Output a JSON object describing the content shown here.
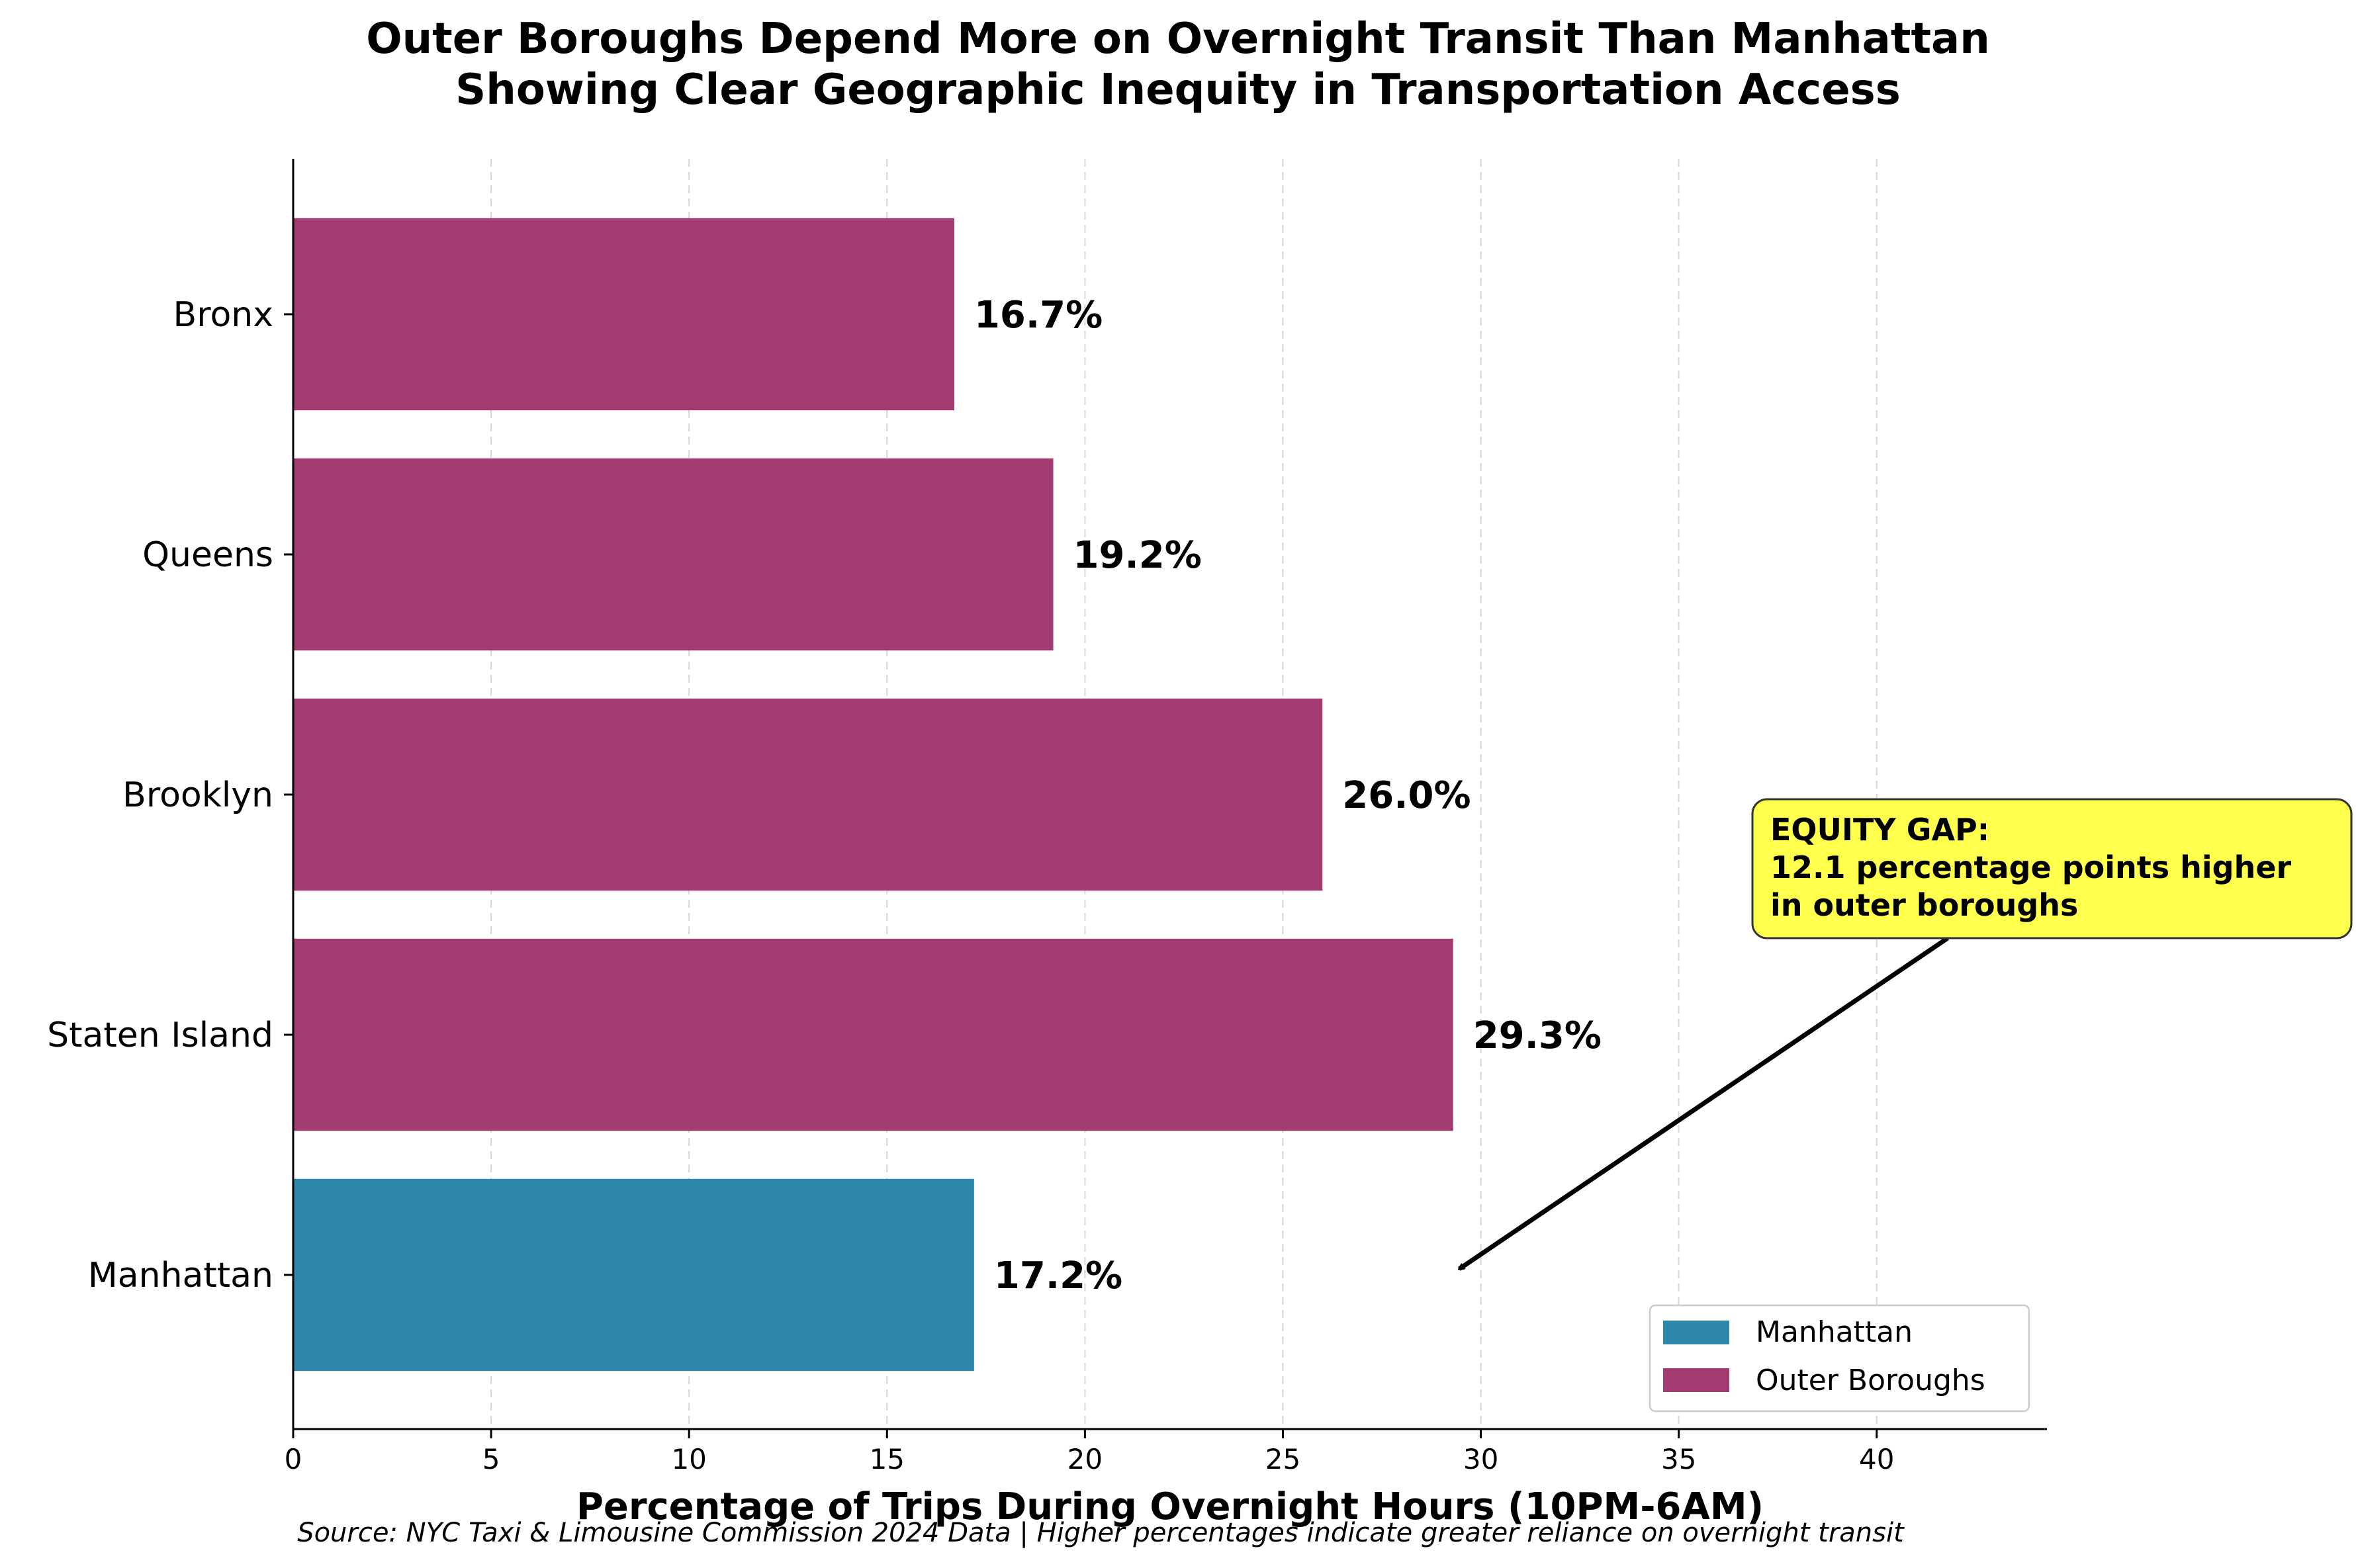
{
  "chart_data": {
    "type": "bar",
    "orientation": "horizontal",
    "title": [
      "Outer Boroughs Depend More on Overnight Transit Than Manhattan",
      "Showing Clear Geographic Inequity in Transportation Access"
    ],
    "categories": [
      "Manhattan",
      "Staten Island",
      "Brooklyn",
      "Queens",
      "Bronx"
    ],
    "values": [
      17.2,
      29.3,
      26.0,
      19.2,
      16.7
    ],
    "value_labels": [
      "17.2%",
      "29.3%",
      "26.0%",
      "19.2%",
      "16.7%"
    ],
    "bar_groups": [
      "Manhattan",
      "Outer Boroughs",
      "Outer Boroughs",
      "Outer Boroughs",
      "Outer Boroughs"
    ],
    "xlabel": "Percentage of Trips During Overnight Hours (10PM-6AM)",
    "ylabel": "",
    "xlim": [
      0,
      44.3
    ],
    "xticks": [
      0,
      5,
      10,
      15,
      20,
      25,
      30,
      35,
      40
    ],
    "grid": "x dashed",
    "legend": {
      "placement": "lower-right",
      "entries": [
        {
          "label": "Manhattan",
          "color": "#2E86AB"
        },
        {
          "label": "Outer Boroughs",
          "color": "#A23B72"
        }
      ]
    },
    "annotation": {
      "lines": [
        "EQUITY GAP:",
        "12.1 percentage points higher",
        "in outer boroughs"
      ],
      "box_color": "#FFFF4D",
      "arrow_target": {
        "x": 29.3,
        "category": "Manhattan"
      }
    },
    "source": "Source: NYC Taxi & Limousine Commission 2024 Data | Higher percentages indicate greater reliance on overnight transit"
  }
}
